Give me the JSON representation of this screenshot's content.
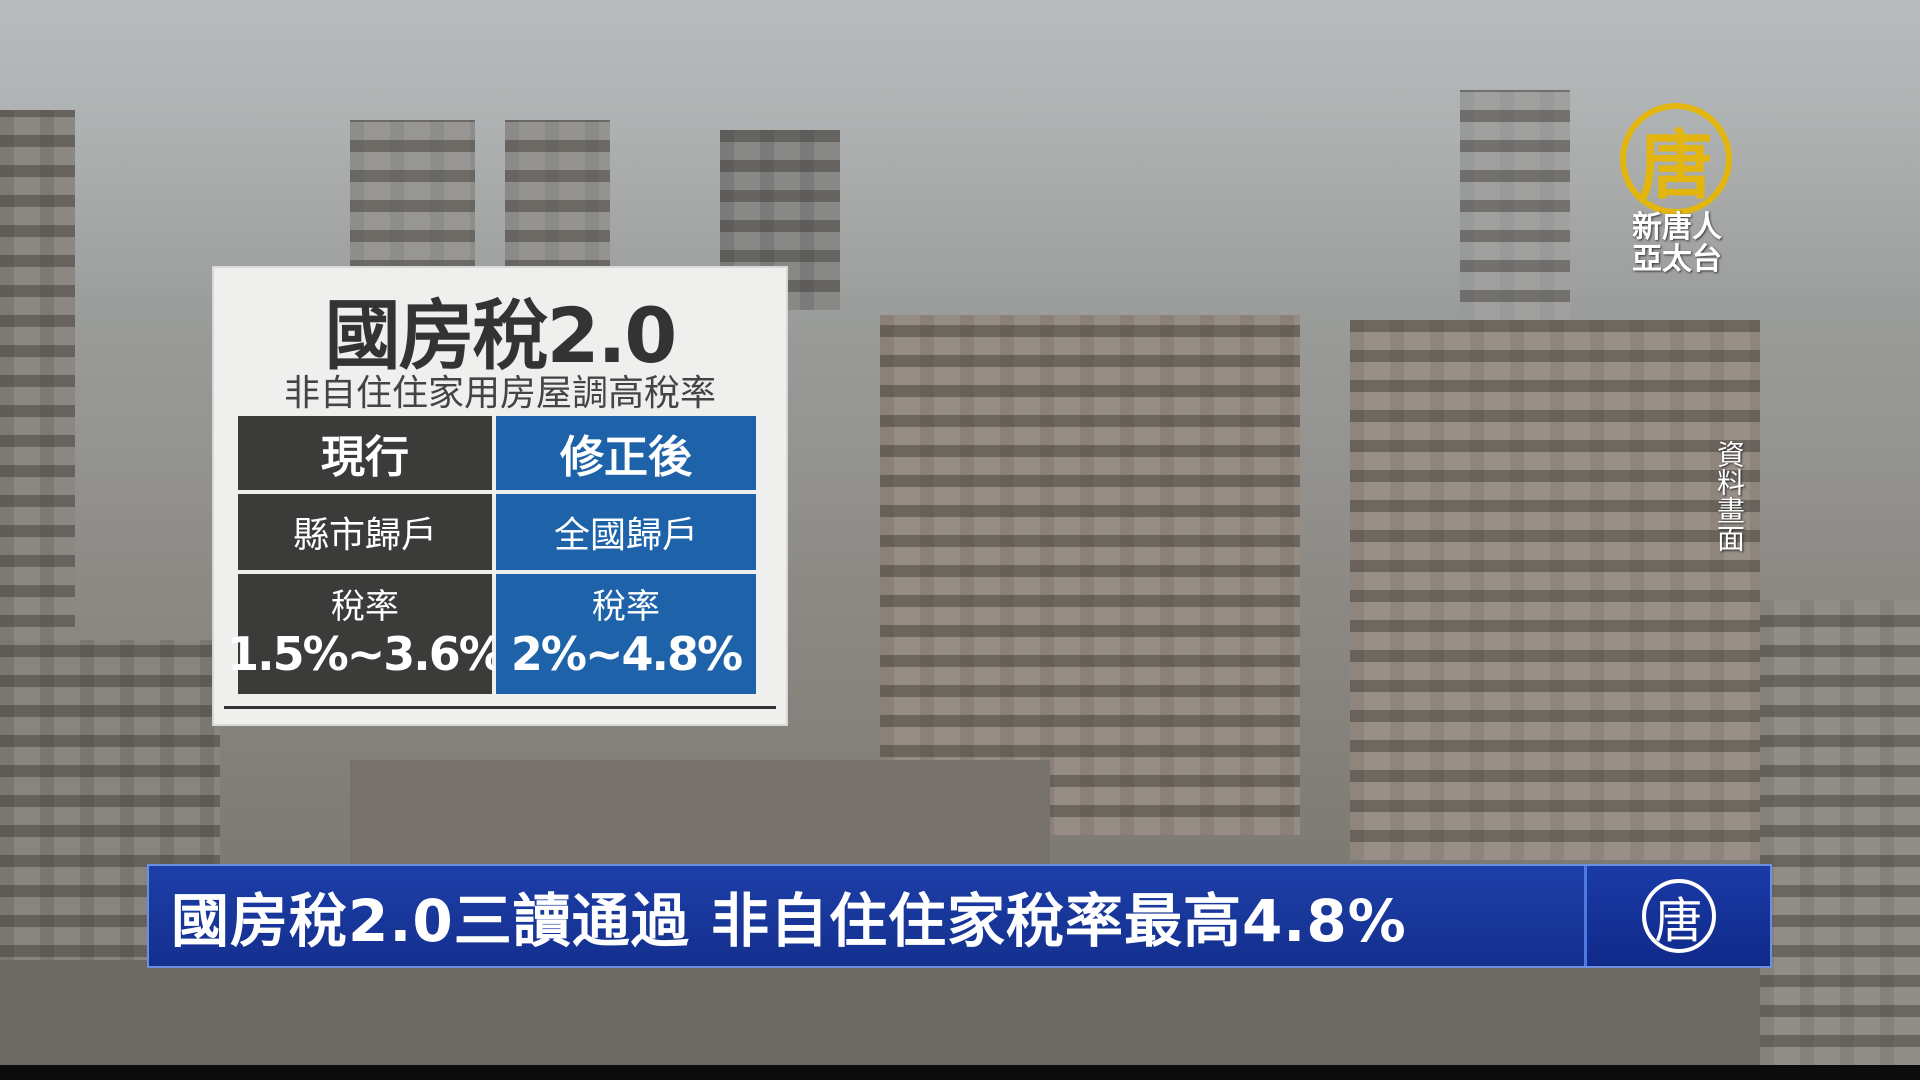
{
  "card": {
    "title": "國房稅2.0",
    "subtitle": "非自住住家用房屋調高稅率",
    "columns": [
      {
        "header": "現行",
        "scope": "縣市歸戶",
        "rate_label": "稅率",
        "rate_value": "1.5%~3.6%"
      },
      {
        "header": "修正後",
        "scope": "全國歸戶",
        "rate_label": "稅率",
        "rate_value": "2%~4.8%"
      }
    ]
  },
  "logo": {
    "glyph": "唐",
    "line1": "新唐人",
    "line2": "亞太台"
  },
  "footage_label": "資料畫面",
  "headline": "國房稅2.0三讀通過 非自住住家稅率最高4.8%",
  "banner_logo_glyph": "唐",
  "colors": {
    "current": "#3b3b39",
    "revised": "#1e63aa",
    "banner": "#1d3fa8",
    "logo": "#e2b60f"
  }
}
